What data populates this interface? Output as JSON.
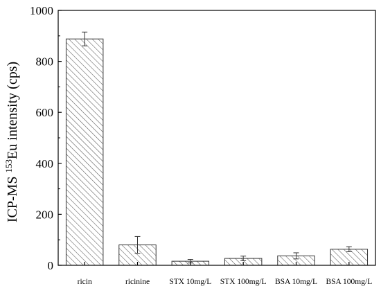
{
  "chart_data": {
    "type": "bar",
    "categories": [
      "ricin",
      "ricinine",
      "STX 10mg/L",
      "STX 100mg/L",
      "BSA 10mg/L",
      "BSA 100mg/L"
    ],
    "values": [
      888,
      80,
      16,
      27,
      37,
      63
    ],
    "errors": [
      27,
      33,
      7,
      9,
      12,
      10
    ],
    "title": "",
    "xlabel": "",
    "ylabel": {
      "prefix": "ICP-MS ",
      "superscript": "153",
      "suffix": "Eu intensity (cps)"
    },
    "ylim": [
      0,
      1000
    ],
    "yticks": [
      0,
      200,
      400,
      600,
      800,
      1000
    ],
    "grid": false,
    "legend": "none",
    "bar_pattern": "diagonal-hatch",
    "colors": {
      "bar_fill": "#ffffff",
      "hatch": "#555555",
      "axis": "#000000"
    }
  }
}
